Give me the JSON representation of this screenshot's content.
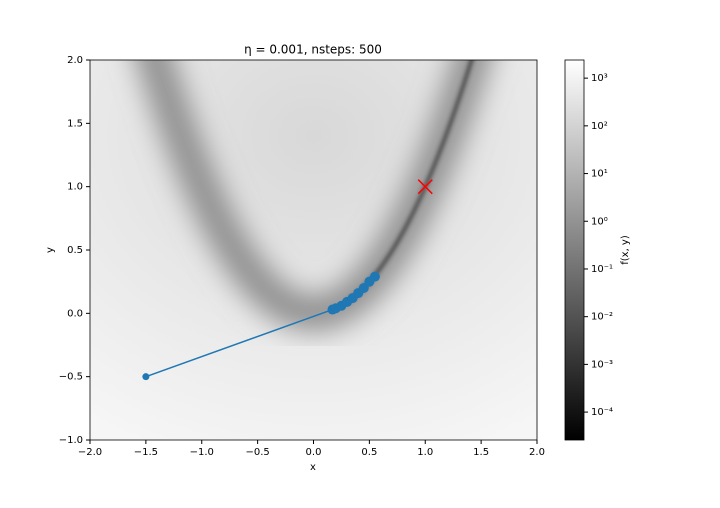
{
  "chart_data": {
    "type": "line",
    "title": "η = 0.001, nsteps: 500",
    "x_label": "x",
    "y_label": "y",
    "xlim": [
      -2,
      2
    ],
    "ylim": [
      -1,
      2
    ],
    "xticks": [
      {
        "value": -2,
        "label": "−2.0"
      },
      {
        "value": -1.5,
        "label": "−1.5"
      },
      {
        "value": -1,
        "label": "−1.0"
      },
      {
        "value": -0.5,
        "label": "−0.5"
      },
      {
        "value": 0,
        "label": "0.0"
      },
      {
        "value": 0.5,
        "label": "0.5"
      },
      {
        "value": 1,
        "label": "1.0"
      },
      {
        "value": 1.5,
        "label": "1.5"
      },
      {
        "value": 2,
        "label": "2.0"
      }
    ],
    "yticks": [
      {
        "value": -1,
        "label": "−1.0"
      },
      {
        "value": -0.5,
        "label": "−0.5"
      },
      {
        "value": 0,
        "label": "0.0"
      },
      {
        "value": 0.5,
        "label": "0.5"
      },
      {
        "value": 1,
        "label": "1.0"
      },
      {
        "value": 1.5,
        "label": "1.5"
      },
      {
        "value": 2,
        "label": "2.0"
      }
    ],
    "series": [
      {
        "color": "#1f77b4",
        "x": [
          -1.5,
          0.17,
          0.2,
          0.25,
          0.3,
          0.35,
          0.4,
          0.45,
          0.5,
          0.55
        ],
        "values": [
          -0.5,
          0.03,
          0.04,
          0.06,
          0.09,
          0.12,
          0.16,
          0.2,
          0.25,
          0.29
        ]
      }
    ],
    "markers": [
      {
        "x": 1,
        "y": 1,
        "color": "#ff0000"
      }
    ],
    "colorbar": {
      "label": "f(x, y)",
      "log": true,
      "clim": [
        2.6e-05,
        2400
      ],
      "ticks": [
        {
          "value": 0.0001,
          "label": "10⁻⁴"
        },
        {
          "value": 0.001,
          "label": "10⁻³"
        },
        {
          "value": 0.01,
          "label": "10⁻²"
        },
        {
          "value": 0.1,
          "label": "10⁻¹"
        },
        {
          "value": 1,
          "label": "10⁰"
        },
        {
          "value": 10,
          "label": "10¹"
        },
        {
          "value": 100,
          "label": "10²"
        },
        {
          "value": 1000,
          "label": "10³"
        }
      ]
    }
  }
}
